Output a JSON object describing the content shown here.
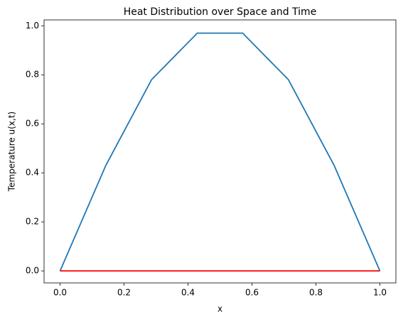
{
  "chart_data": {
    "type": "line",
    "title": "Heat Distribution over Space and Time",
    "x_label": "x",
    "y_label": "Temperature u(x,t)",
    "x": [
      0,
      0.143,
      0.286,
      0.429,
      0.571,
      0.714,
      0.857,
      1
    ],
    "series": [
      {
        "color": "#1f77b4",
        "values": [
          0,
          0.43,
          0.78,
          0.97,
          0.97,
          0.78,
          0.43,
          0
        ]
      },
      {
        "color": "#ff0000",
        "values": [
          0,
          0,
          0,
          0,
          0,
          0,
          0,
          0
        ]
      }
    ],
    "xlim": [
      -0.05,
      1.05
    ],
    "ylim": [
      -0.049,
      1.024
    ],
    "xticks": [
      {
        "value": 0,
        "label": "0.0"
      },
      0.2,
      0.4,
      0.6,
      0.8,
      {
        "value": 1,
        "label": "1.0"
      }
    ],
    "yticks": [
      {
        "value": 0,
        "label": "0.0"
      },
      0.2,
      0.4,
      0.6,
      0.8,
      {
        "value": 1,
        "label": "1.0"
      }
    ],
    "grid": false
  }
}
